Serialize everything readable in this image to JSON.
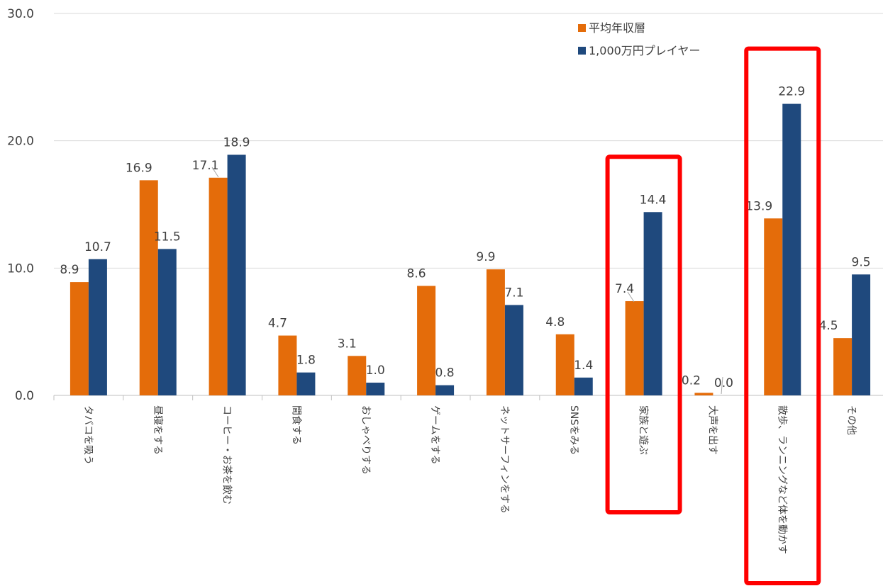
{
  "chart_data": {
    "type": "bar",
    "title": "",
    "xlabel": "",
    "ylabel": "",
    "ylim": [
      0,
      30
    ],
    "yticks": [
      "0.0",
      "10.0",
      "20.0",
      "30.0"
    ],
    "grid": true,
    "legend_position": "top-right",
    "categories": [
      "タバコを吸う",
      "昼寝をする",
      "コーヒー・お茶を飲む",
      "間食する",
      "おしゃべりする",
      "ゲームをする",
      "ネットサーフィンをする",
      "SNSをみる",
      "家族と遊ぶ",
      "大声を出す",
      "散歩、ランニングなど体を動かす",
      "その他"
    ],
    "series": [
      {
        "name": "平均年収層",
        "color": "#E46C0A",
        "values": [
          8.9,
          16.9,
          17.1,
          4.7,
          3.1,
          8.6,
          9.9,
          4.8,
          7.4,
          0.2,
          13.9,
          4.5
        ],
        "labels": [
          "8.9",
          "16.9",
          "17.1",
          "4.7",
          "3.1",
          "8.6",
          "9.9",
          "4.8",
          "7.4",
          "0.2",
          "13.9",
          "4.5"
        ]
      },
      {
        "name": "1,000万円プレイヤー",
        "color": "#1F497D",
        "values": [
          10.7,
          11.5,
          18.9,
          1.8,
          1.0,
          0.8,
          7.1,
          1.4,
          14.4,
          0.0,
          22.9,
          9.5
        ],
        "labels": [
          "10.7",
          "11.5",
          "18.9",
          "1.8",
          "1.0",
          "0.8",
          "7.1",
          "1.4",
          "14.4",
          "0.0",
          "22.9",
          "9.5"
        ]
      }
    ],
    "highlighted_categories": [
      "家族と遊ぶ",
      "散歩、ランニングなど体を動かす"
    ],
    "highlight_color": "#FF0000"
  }
}
